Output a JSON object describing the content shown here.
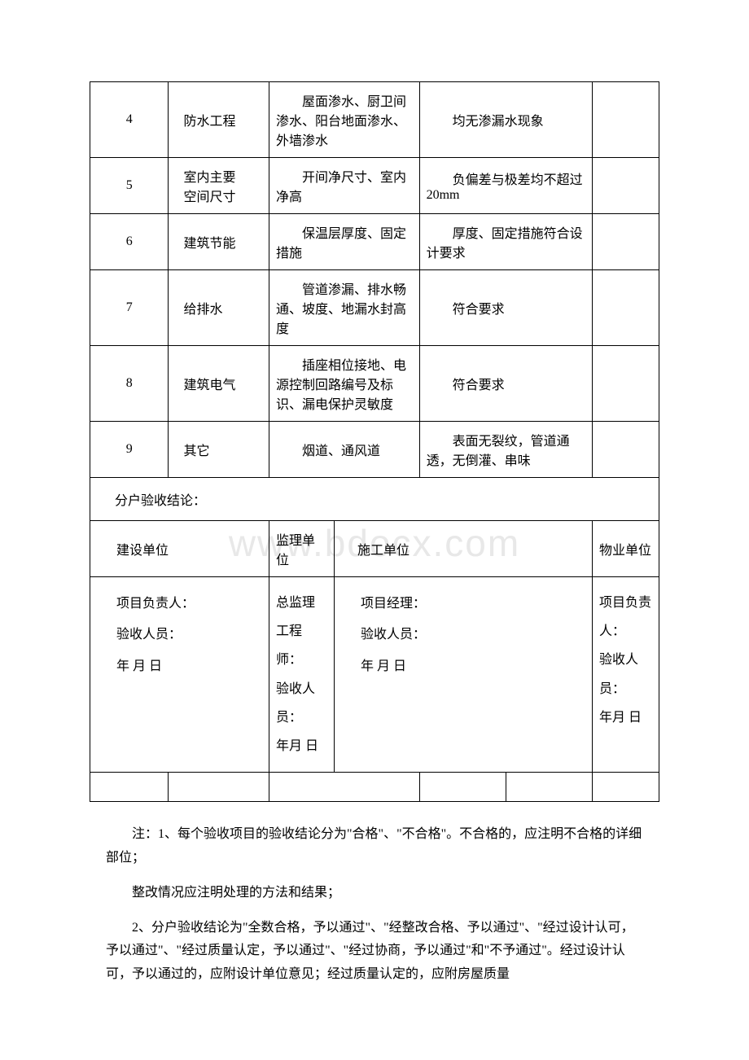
{
  "watermark": "www.bdocx.com",
  "rows": [
    {
      "num": "4",
      "name": "防水工程",
      "detail": "　　屋面渗水、厨卫间渗水、阳台地面渗水、外墙渗水",
      "requirement": "　　均无渗漏水现象"
    },
    {
      "num": "5",
      "name": "室内主要\n空间尺寸",
      "detail": "　　开间净尺寸、室内净高",
      "requirement": "　　负偏差与极差均不超过 20mm"
    },
    {
      "num": "6",
      "name": "建筑节能",
      "detail": "　　保温层厚度、固定措施",
      "requirement": "　　厚度、固定措施符合设计要求"
    },
    {
      "num": "7",
      "name": "给排水",
      "detail": "　　管道渗漏、排水畅通、坡度、地漏水封高度",
      "requirement": "　　符合要求"
    },
    {
      "num": "8",
      "name": "建筑电气",
      "detail": "　　插座相位接地、电源控制回路编号及标识、漏电保护灵敏度",
      "requirement": "　　符合要求"
    },
    {
      "num": "9",
      "name": "其它",
      "detail": "　　烟道、通风道",
      "requirement": "　　表面无裂纹，管道通透，无倒灌、串味"
    }
  ],
  "conclusion_label": "分户验收结论：",
  "unit_headers": {
    "construction": "建设单位",
    "supervision": "监理单位",
    "contractor": "施工单位",
    "property": "物业单位"
  },
  "signature_blocks": {
    "construction": "项目负责人：\n验收人员：\n年 月 日",
    "supervision": "总监理工程师：\n验收人员：\n年月 日",
    "contractor": "项目经理：\n验收人员：\n年 月 日",
    "property": "项目负责人：\n验收人员：\n年月 日"
  },
  "notes": {
    "p1": "注：1、每个验收项目的验收结论分为\"合格\"、\"不合格\"。不合格的，应注明不合格的详细部位；",
    "p2": "整改情况应注明处理的方法和结果；",
    "p3": "2、分户验收结论为\"全数合格，予以通过\"、\"经整改合格、予以通过\"、\"经过设计认可，予以通过\"、\"经过质量认定，予以通过\"、\"经过协商，予以通过\"和\"不予通过\"。经过设计认可，予以通过的，应附设计单位意见；经过质量认定的，应附房屋质量"
  }
}
